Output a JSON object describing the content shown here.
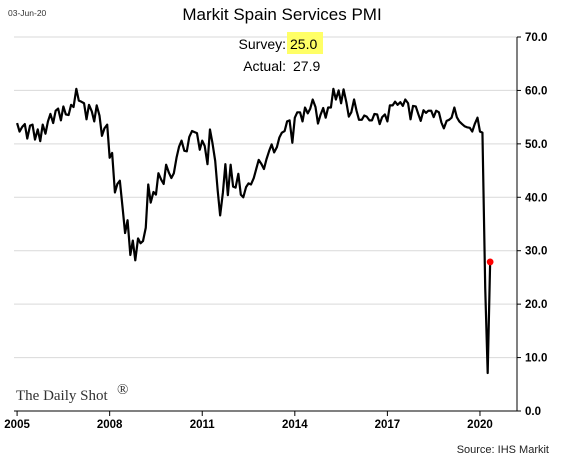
{
  "date_label": "03-Jun-20",
  "source_label": "Source: IHS Markit",
  "logo_text": "The Daily Shot",
  "logo_mark": "®",
  "annotations": {
    "survey_label": "Survey:",
    "survey_value": "25.0",
    "actual_label": "Actual:",
    "actual_value": "27.9"
  },
  "colors": {
    "line": "#000000",
    "highlight": "#ffff66",
    "marker": "#ff0000",
    "grid": "#d9d9d9"
  },
  "chart_data": {
    "type": "line",
    "title": "Markit Spain Services PMI",
    "xlabel": "",
    "ylabel": "",
    "y_axis_side": "right",
    "ylim": [
      0,
      70
    ],
    "yticks": [
      "0.0",
      "10.0",
      "20.0",
      "30.0",
      "40.0",
      "50.0",
      "60.0",
      "70.0"
    ],
    "xlim": [
      2004.9,
      2021.2
    ],
    "xticks": [
      "2005",
      "2008",
      "2011",
      "2014",
      "2017",
      "2020"
    ],
    "grid": "horizontal",
    "series": [
      {
        "x": [
          2005.0,
          2005.08,
          2005.17,
          2005.25,
          2005.33,
          2005.42,
          2005.5,
          2005.58,
          2005.67,
          2005.75,
          2005.83,
          2005.92,
          2006.0,
          2006.08,
          2006.17,
          2006.25,
          2006.33,
          2006.42,
          2006.5,
          2006.58,
          2006.67,
          2006.75,
          2006.83,
          2006.92,
          2007.0,
          2007.08,
          2007.17,
          2007.25,
          2007.33,
          2007.42,
          2007.5,
          2007.58,
          2007.67,
          2007.75,
          2007.83,
          2007.92,
          2008.0,
          2008.08,
          2008.17,
          2008.25,
          2008.33,
          2008.42,
          2008.5,
          2008.58,
          2008.67,
          2008.75,
          2008.83,
          2008.92,
          2009.0,
          2009.08,
          2009.17,
          2009.25,
          2009.33,
          2009.42,
          2009.5,
          2009.58,
          2009.67,
          2009.75,
          2009.83,
          2009.92,
          2010.0,
          2010.08,
          2010.17,
          2010.25,
          2010.33,
          2010.42,
          2010.5,
          2010.58,
          2010.67,
          2010.75,
          2010.83,
          2010.92,
          2011.0,
          2011.08,
          2011.17,
          2011.25,
          2011.33,
          2011.42,
          2011.5,
          2011.58,
          2011.67,
          2011.75,
          2011.83,
          2011.92,
          2012.0,
          2012.08,
          2012.17,
          2012.25,
          2012.33,
          2012.42,
          2012.5,
          2012.58,
          2012.67,
          2012.75,
          2012.83,
          2012.92,
          2013.0,
          2013.08,
          2013.17,
          2013.25,
          2013.33,
          2013.42,
          2013.5,
          2013.58,
          2013.67,
          2013.75,
          2013.83,
          2013.92,
          2014.0,
          2014.08,
          2014.17,
          2014.25,
          2014.33,
          2014.42,
          2014.5,
          2014.58,
          2014.67,
          2014.75,
          2014.83,
          2014.92,
          2015.0,
          2015.08,
          2015.17,
          2015.25,
          2015.33,
          2015.42,
          2015.5,
          2015.58,
          2015.67,
          2015.75,
          2015.83,
          2015.92,
          2016.0,
          2016.08,
          2016.17,
          2016.25,
          2016.33,
          2016.42,
          2016.5,
          2016.58,
          2016.67,
          2016.75,
          2016.83,
          2016.92,
          2017.0,
          2017.08,
          2017.17,
          2017.25,
          2017.33,
          2017.42,
          2017.5,
          2017.58,
          2017.67,
          2017.75,
          2017.83,
          2017.92,
          2018.0,
          2018.08,
          2018.17,
          2018.25,
          2018.33,
          2018.42,
          2018.5,
          2018.58,
          2018.67,
          2018.75,
          2018.83,
          2018.92,
          2019.0,
          2019.08,
          2019.17,
          2019.25,
          2019.33,
          2019.42,
          2019.5,
          2019.58,
          2019.67,
          2019.75,
          2019.83,
          2019.92,
          2020.0,
          2020.08,
          2020.17,
          2020.25,
          2020.33
        ],
        "values": [
          53.9,
          52.3,
          53.2,
          53.7,
          51.0,
          53.4,
          53.6,
          50.8,
          52.7,
          50.5,
          53.6,
          51.9,
          54.2,
          55.6,
          53.9,
          56.2,
          56.6,
          54.4,
          57.0,
          55.5,
          55.4,
          57.3,
          56.9,
          60.3,
          58.1,
          57.9,
          57.6,
          54.6,
          57.3,
          56.1,
          54.2,
          57.2,
          55.3,
          51.5,
          52.9,
          53.6,
          47.4,
          48.3,
          40.9,
          42.5,
          43.1,
          38.0,
          33.3,
          35.7,
          29.2,
          31.9,
          28.2,
          32.3,
          31.4,
          31.8,
          34.3,
          42.4,
          39.0,
          41.0,
          40.5,
          44.5,
          43.3,
          42.5,
          46.1,
          44.6,
          43.6,
          44.5,
          47.5,
          49.5,
          50.6,
          48.7,
          48.6,
          51.3,
          52.4,
          52.2,
          52.0,
          48.9,
          50.6,
          49.6,
          46.2,
          52.7,
          50.2,
          46.8,
          41.3,
          36.6,
          40.9,
          46.2,
          40.4,
          46.1,
          42.0,
          41.8,
          44.4,
          40.5,
          40.0,
          41.9,
          42.6,
          42.4,
          43.6,
          45.3,
          47.0,
          46.2,
          45.3,
          47.1,
          48.7,
          49.9,
          48.4,
          49.4,
          51.2,
          52.1,
          52.4,
          54.2,
          54.4,
          50.2,
          54.9,
          55.9,
          55.9,
          54.2,
          56.8,
          55.7,
          56.6,
          58.3,
          56.9,
          53.8,
          55.4,
          56.7,
          54.9,
          56.8,
          56.8,
          60.3,
          58.3,
          60.0,
          57.6,
          60.2,
          57.8,
          55.1,
          55.9,
          58.3,
          56.2,
          54.5,
          54.5,
          55.3,
          55.1,
          54.4,
          54.4,
          55.6,
          55.5,
          53.7,
          55.0,
          55.5,
          54.2,
          57.2,
          57.2,
          57.9,
          57.3,
          57.8,
          57.1,
          58.3,
          57.6,
          54.6,
          57.1,
          57.0,
          55.6,
          54.3,
          56.3,
          55.8,
          56.2,
          56.2,
          55.0,
          56.2,
          55.9,
          54.0,
          52.9,
          54.3,
          54.5,
          54.9,
          56.8,
          55.0,
          54.2,
          53.7,
          53.3,
          53.1,
          53.0,
          52.3,
          53.7,
          54.9,
          52.3,
          52.1,
          23.0,
          7.1,
          27.9
        ]
      }
    ],
    "last_point": {
      "x": 2020.33,
      "value": 27.9
    }
  }
}
